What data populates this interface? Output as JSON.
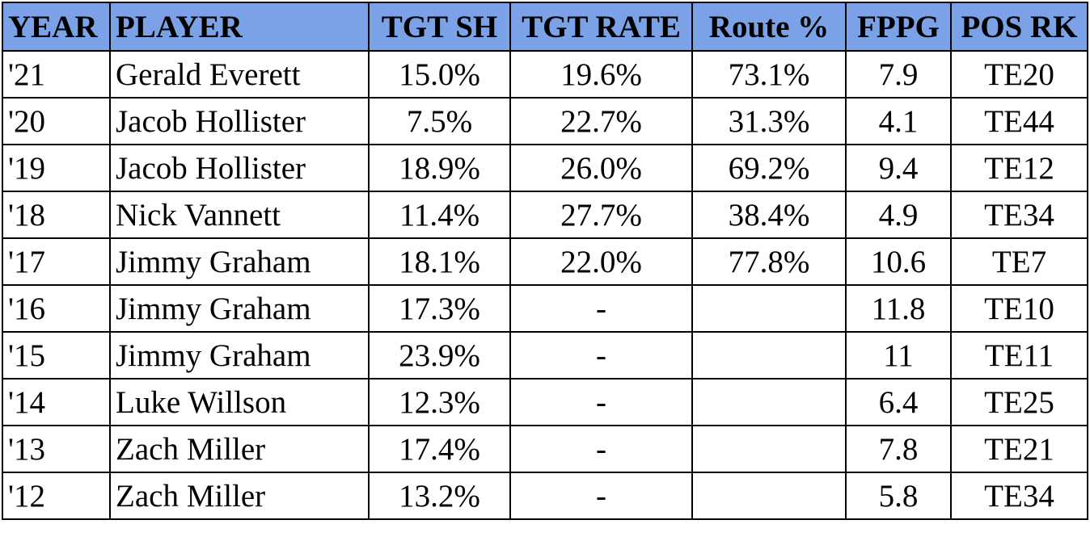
{
  "table": {
    "header": [
      "YEAR",
      "PLAYER",
      "TGT SH",
      "TGT RATE",
      "Route %",
      "FPPG",
      "POS RK"
    ],
    "rows": [
      [
        "'21",
        "Gerald Everett",
        "15.0%",
        "19.6%",
        "73.1%",
        "7.9",
        "TE20"
      ],
      [
        "'20",
        "Jacob Hollister",
        "7.5%",
        "22.7%",
        "31.3%",
        "4.1",
        "TE44"
      ],
      [
        "'19",
        "Jacob Hollister",
        "18.9%",
        "26.0%",
        "69.2%",
        "9.4",
        "TE12"
      ],
      [
        "'18",
        "Nick Vannett",
        "11.4%",
        "27.7%",
        "38.4%",
        "4.9",
        "TE34"
      ],
      [
        "'17",
        "Jimmy Graham",
        "18.1%",
        "22.0%",
        "77.8%",
        "10.6",
        "TE7"
      ],
      [
        "'16",
        "Jimmy Graham",
        "17.3%",
        "-",
        null,
        "11.8",
        "TE10"
      ],
      [
        "'15",
        "Jimmy Graham",
        "23.9%",
        "-",
        null,
        "11",
        "TE11"
      ],
      [
        "'14",
        "Luke Willson",
        "12.3%",
        "-",
        null,
        "6.4",
        "TE25"
      ],
      [
        "'13",
        "Zach Miller",
        "17.4%",
        "-",
        null,
        "7.8",
        "TE21"
      ],
      [
        "'12",
        "Zach Miller",
        "13.2%",
        "-",
        null,
        "5.8",
        "TE34"
      ]
    ]
  }
}
